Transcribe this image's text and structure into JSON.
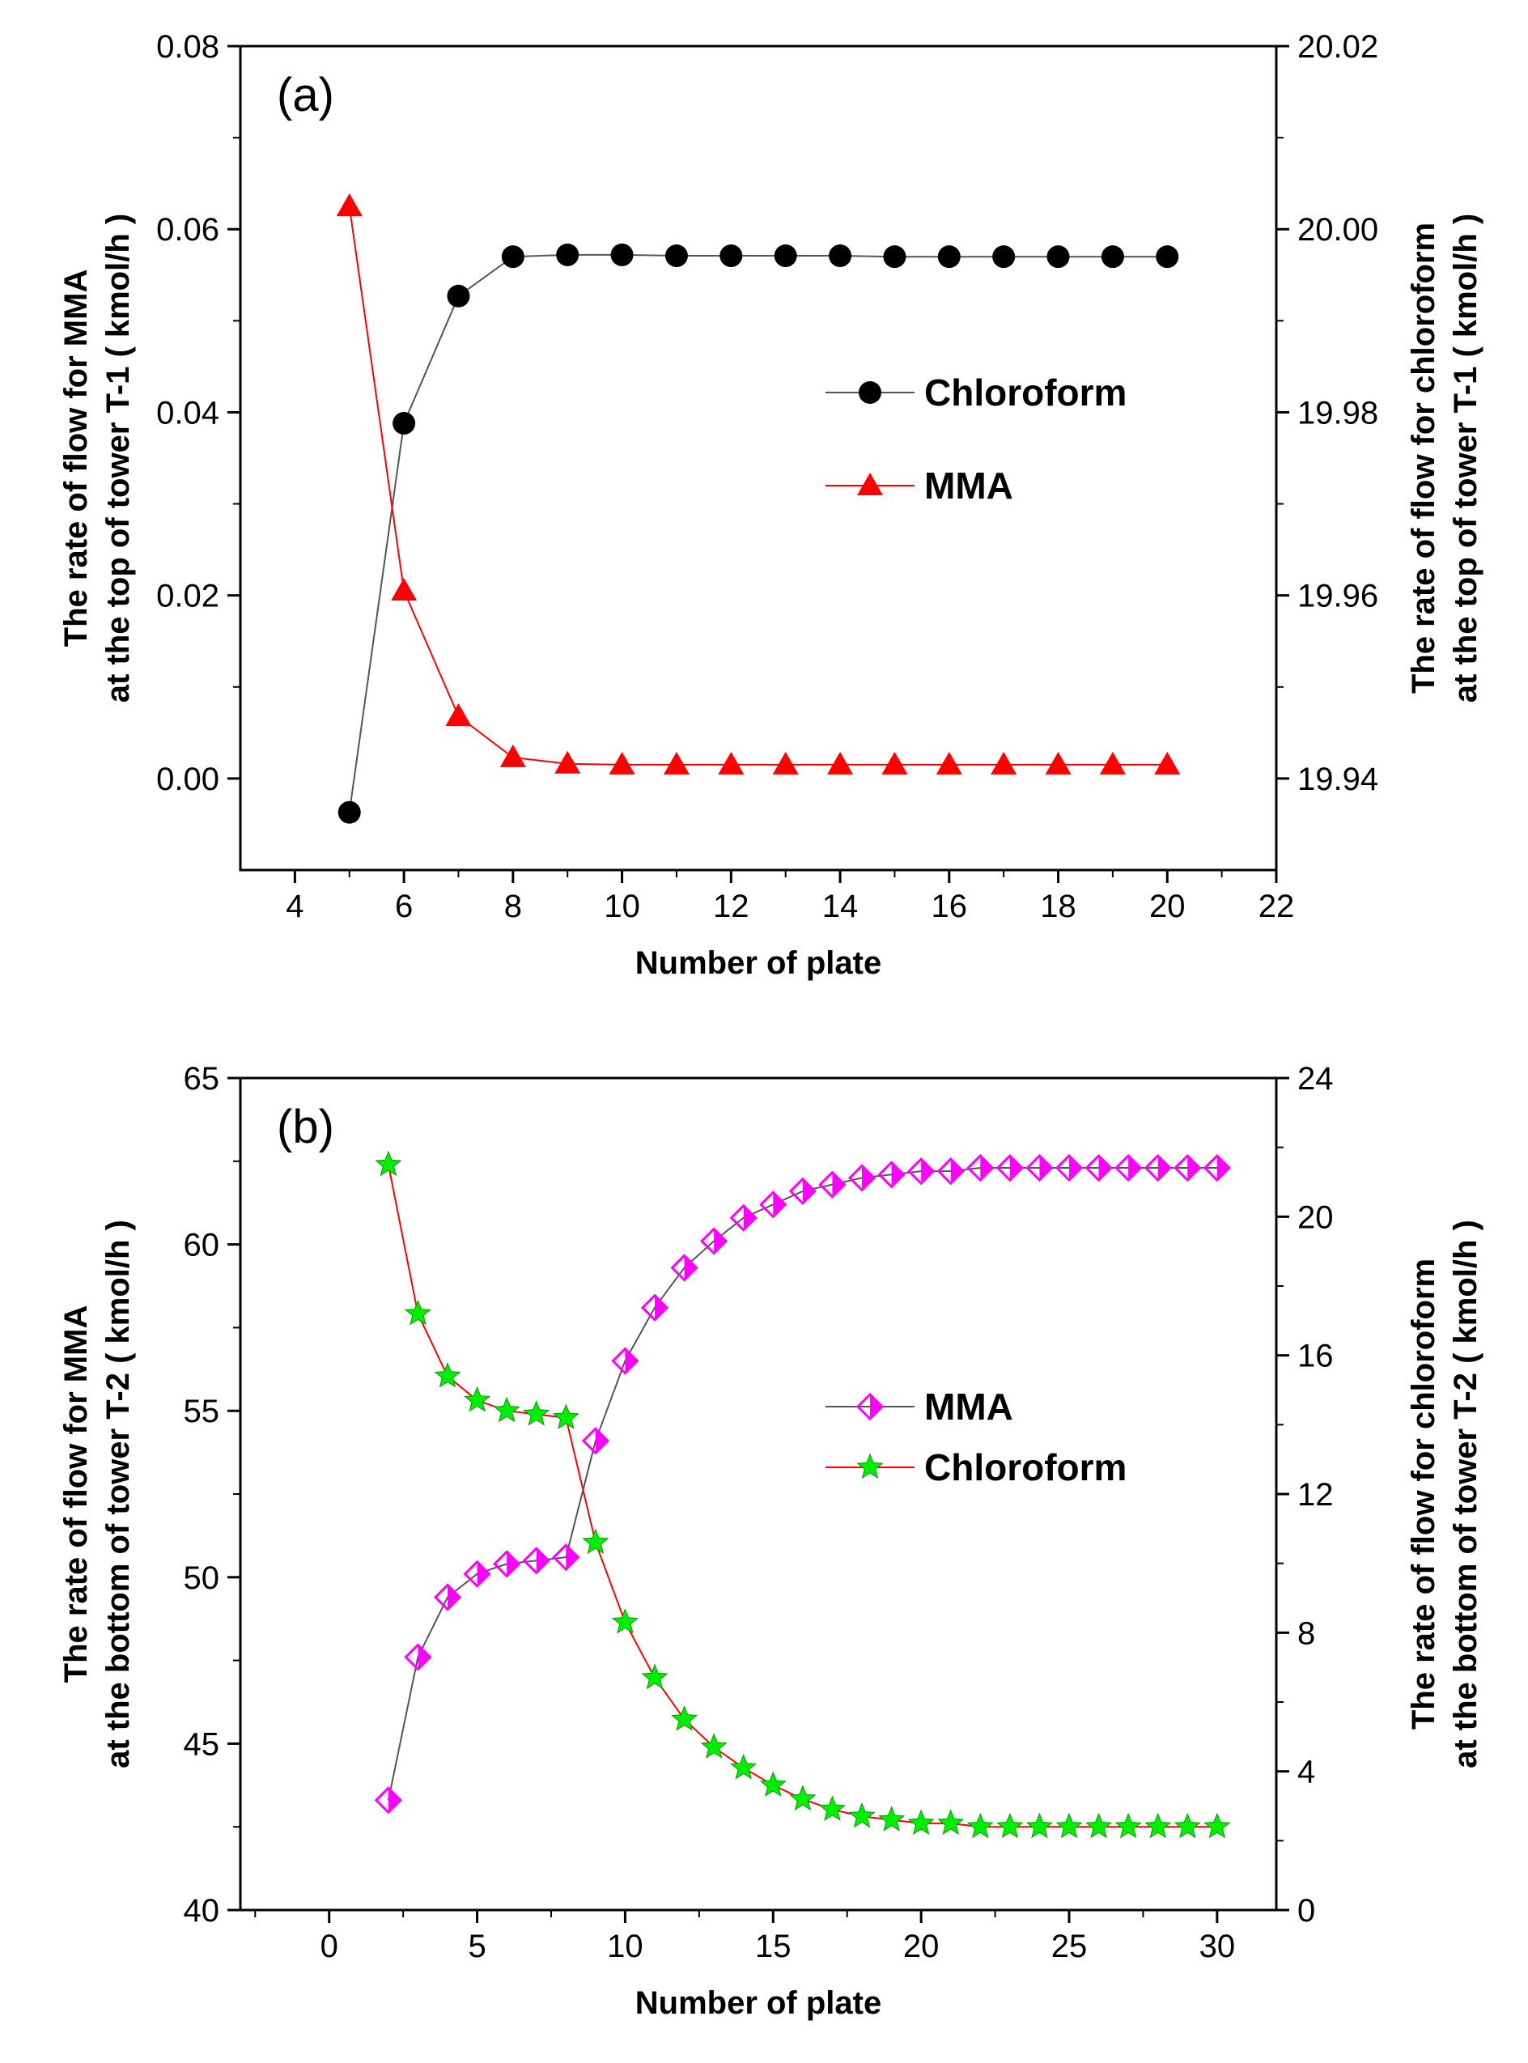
{
  "chart_data": [
    {
      "type": "line",
      "panel_label": "(a)",
      "xlabel": "Number of plate",
      "ylabel_left": [
        "The rate of flow for MMA",
        "at the top of tower T-1 ( kmol/h )"
      ],
      "ylabel_right": [
        "The rate of flow for chloroform",
        "at the top of tower T-1 ( kmol/h )"
      ],
      "xlim": [
        3,
        22
      ],
      "ylim_left": [
        -0.01,
        0.08
      ],
      "ylim_right": [
        19.93,
        20.02
      ],
      "x_ticks": [
        4,
        6,
        8,
        10,
        12,
        14,
        16,
        18,
        20,
        22
      ],
      "x_tick_labels": [
        "4",
        "6",
        "8",
        "10",
        "12",
        "14",
        "16",
        "18",
        "20",
        "22"
      ],
      "y_left_ticks": [
        0.0,
        0.02,
        0.04,
        0.06,
        0.08
      ],
      "y_left_tick_labels": [
        "0.00",
        "0.02",
        "0.04",
        "0.06",
        "0.08"
      ],
      "y_right_ticks": [
        19.94,
        19.96,
        19.98,
        20.0,
        20.02
      ],
      "y_right_tick_labels": [
        "19.94",
        "19.96",
        "19.98",
        "20.00",
        "20.02"
      ],
      "grid": false,
      "legend_position": "center-right",
      "series": [
        {
          "name": "Chloroform",
          "axis": "right",
          "marker": "circle",
          "marker_color": "#000000",
          "line_color": "#555555",
          "x": [
            5,
            6,
            7,
            8,
            9,
            10,
            11,
            12,
            13,
            14,
            15,
            16,
            17,
            18,
            19,
            20
          ],
          "y": [
            19.9363,
            19.9788,
            19.9927,
            19.997,
            19.9972,
            19.9972,
            19.9971,
            19.9971,
            19.9971,
            19.9971,
            19.997,
            19.997,
            19.997,
            19.997,
            19.997,
            19.997
          ]
        },
        {
          "name": "MMA",
          "axis": "left",
          "marker": "triangle",
          "marker_color": "#ff0000",
          "line_color": "#ff0000",
          "x": [
            5,
            6,
            7,
            8,
            9,
            10,
            11,
            12,
            13,
            14,
            15,
            16,
            17,
            18,
            19,
            20
          ],
          "y": [
            0.0625,
            0.0205,
            0.0068,
            0.0023,
            0.0016,
            0.0015,
            0.0015,
            0.0015,
            0.0015,
            0.0015,
            0.0015,
            0.0015,
            0.0015,
            0.0015,
            0.0015,
            0.0015
          ]
        }
      ]
    },
    {
      "type": "line",
      "panel_label": "(b)",
      "xlabel": "Number of plate",
      "ylabel_left": [
        "The rate of flow for MMA",
        "at the bottom of tower T-2 ( kmol/h )"
      ],
      "ylabel_right": [
        "The rate of flow for chloroform",
        "at the bottom of tower T-2 ( kmol/h )"
      ],
      "xlim": [
        -3,
        32
      ],
      "ylim_left": [
        40,
        65
      ],
      "ylim_right": [
        0,
        24
      ],
      "x_ticks": [
        0,
        5,
        10,
        15,
        20,
        25,
        30
      ],
      "x_tick_labels": [
        "0",
        "5",
        "10",
        "15",
        "20",
        "25",
        "30"
      ],
      "y_left_ticks": [
        40,
        45,
        50,
        55,
        60,
        65
      ],
      "y_left_tick_labels": [
        "40",
        "45",
        "50",
        "55",
        "60",
        "65"
      ],
      "y_right_ticks": [
        0,
        4,
        8,
        12,
        16,
        20,
        24
      ],
      "y_right_tick_labels": [
        "0",
        "4",
        "8",
        "12",
        "16",
        "20",
        "24"
      ],
      "grid": false,
      "legend_position": "center-right",
      "series": [
        {
          "name": "MMA",
          "axis": "left",
          "marker": "half-filled-diamond",
          "marker_color": "#ff00ff",
          "line_color": "#555555",
          "x": [
            2,
            3,
            4,
            5,
            6,
            7,
            8,
            9,
            10,
            11,
            12,
            13,
            14,
            15,
            16,
            17,
            18,
            19,
            20,
            21,
            22,
            23,
            24,
            25,
            26,
            27,
            28,
            29,
            30
          ],
          "y": [
            43.3,
            47.6,
            49.4,
            50.1,
            50.4,
            50.5,
            50.6,
            54.1,
            56.5,
            58.1,
            59.3,
            60.1,
            60.8,
            61.2,
            61.6,
            61.8,
            62.0,
            62.1,
            62.2,
            62.2,
            62.3,
            62.3,
            62.3,
            62.3,
            62.3,
            62.3,
            62.3,
            62.3,
            62.3
          ]
        },
        {
          "name": "Chloroform",
          "axis": "right",
          "marker": "star",
          "marker_color": "#00ee00",
          "line_color": "#ff0000",
          "x": [
            2,
            3,
            4,
            5,
            6,
            7,
            8,
            9,
            10,
            11,
            12,
            13,
            14,
            15,
            16,
            17,
            18,
            19,
            20,
            21,
            22,
            23,
            24,
            25,
            26,
            27,
            28,
            29,
            30
          ],
          "y": [
            21.5,
            17.2,
            15.4,
            14.7,
            14.4,
            14.3,
            14.2,
            10.6,
            8.3,
            6.7,
            5.5,
            4.7,
            4.1,
            3.6,
            3.2,
            2.9,
            2.7,
            2.6,
            2.5,
            2.5,
            2.4,
            2.4,
            2.4,
            2.4,
            2.4,
            2.4,
            2.4,
            2.4,
            2.4
          ]
        }
      ]
    }
  ]
}
